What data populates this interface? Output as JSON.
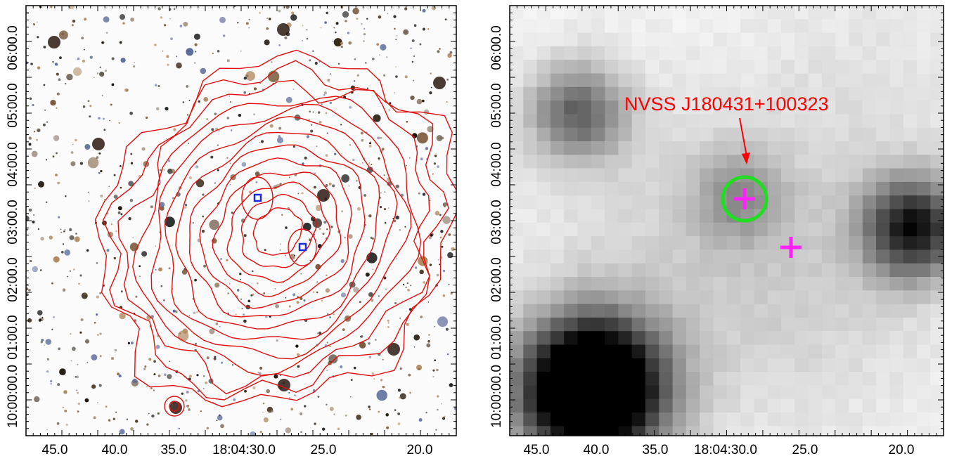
{
  "left_panel": {
    "x_ticks": [
      "45.0",
      "40.0",
      "35.0",
      "18:04:30.0",
      "25.0",
      "20.0"
    ],
    "y_ticks": [
      "10:00:00.0",
      "01:00.0",
      "02:00.0",
      "03:00.0",
      "04:00.0",
      "05:00.0",
      "06:00.0"
    ]
  },
  "right_panel": {
    "x_ticks": [
      "45.0",
      "40.0",
      "35.0",
      "18:04:30.0",
      "25.0",
      "20.0"
    ],
    "y_ticks": [
      "10:00:00.0",
      "01:00.0",
      "02:00.0",
      "03:00.0",
      "04:00.0",
      "05:00.0",
      "06:00.0"
    ],
    "annotation": "NVSS J180431+100323"
  },
  "colors": {
    "contour": "#e01010",
    "marker_box": "#1a2bd6",
    "circle": "#22dd22",
    "cross": "#ff22ff",
    "annotation": "#ff0000"
  }
}
